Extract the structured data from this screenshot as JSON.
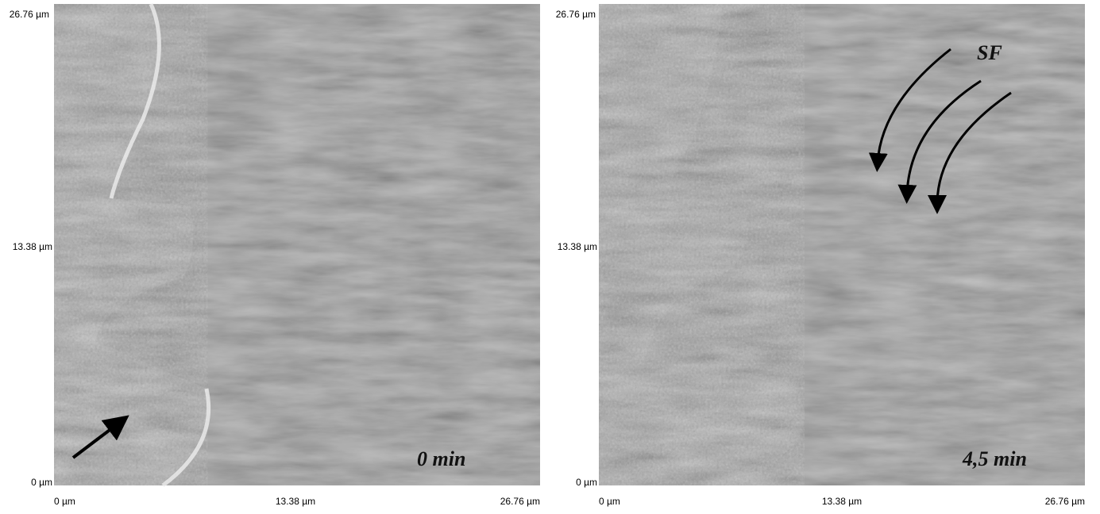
{
  "panels": [
    {
      "y_labels": [
        "26.76 µm",
        "13.38 µm",
        "0 µm"
      ],
      "x_labels": [
        "0 µm",
        "13.38 µm",
        "26.76 µm"
      ],
      "annotation": "0 min"
    },
    {
      "y_labels": [
        "26.76 µm",
        "13.38 µm",
        "0 µm"
      ],
      "x_labels": [
        "0 µm",
        "13.38 µm",
        "26.76 µm"
      ],
      "annotation": "4,5 min",
      "marker": "SF"
    }
  ]
}
